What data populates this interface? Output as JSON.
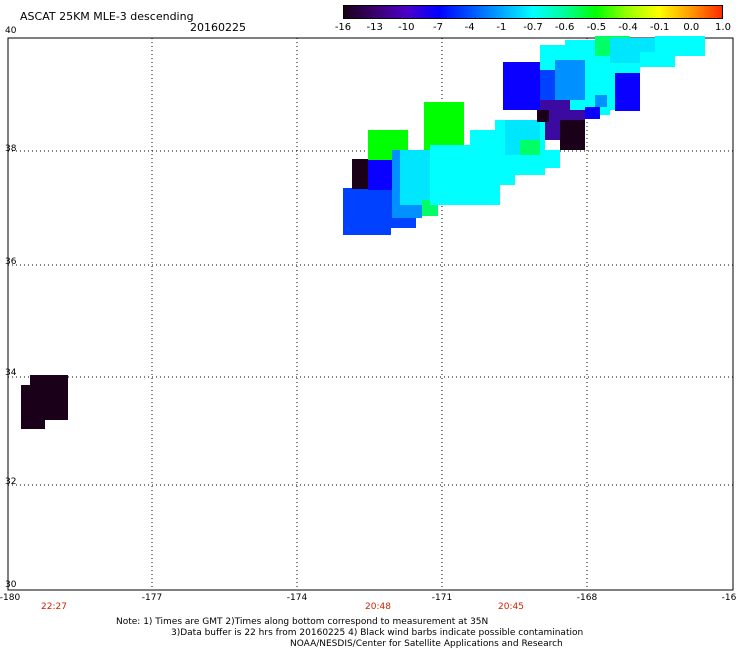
{
  "header": {
    "title": "ASCAT 25KM MLE-3 descending",
    "date": "20160225"
  },
  "colorbar": {
    "labels": [
      "-16",
      "-13",
      "-10",
      "-7",
      "-4",
      "-1",
      "-0.7",
      "-0.6",
      "-0.5",
      "-0.4",
      "-0.1",
      "0.0",
      "1.0"
    ],
    "colors": [
      "#1a001a",
      "#3a0070",
      "#4b00c8",
      "#0000ff",
      "#0050ff",
      "#00a8ff",
      "#00ffff",
      "#00ff9a",
      "#00ff00",
      "#9aff00",
      "#ffff00",
      "#ff9900",
      "#ff2a00"
    ]
  },
  "map": {
    "lat_labels": [
      "40",
      "38",
      "36",
      "34",
      "32",
      "30"
    ],
    "lon_labels": [
      "-180",
      "-177",
      "-174",
      "-171",
      "-168",
      "-16"
    ],
    "time_labels": [
      "22:27",
      "20:48",
      "20:45"
    ],
    "swath_colors": {
      "dark": "#1a0018",
      "purple": "#3c0aa0",
      "blue": "#0a00ff",
      "blue2": "#0040ff",
      "sky": "#0090ff",
      "cyan": "#00ffff",
      "cyan2": "#00e6ff",
      "green": "#00ff00",
      "green2": "#00ff66"
    }
  },
  "notes": {
    "line1": "Note: 1) Times are GMT 2)Times along bottom correspond to measurement at 35N",
    "line2": "3)Data buffer is 22 hrs from 20160225 4) Black wind barbs indicate possible contamination",
    "line3": "NOAA/NESDIS/Center for Satellite Applications and Research"
  }
}
